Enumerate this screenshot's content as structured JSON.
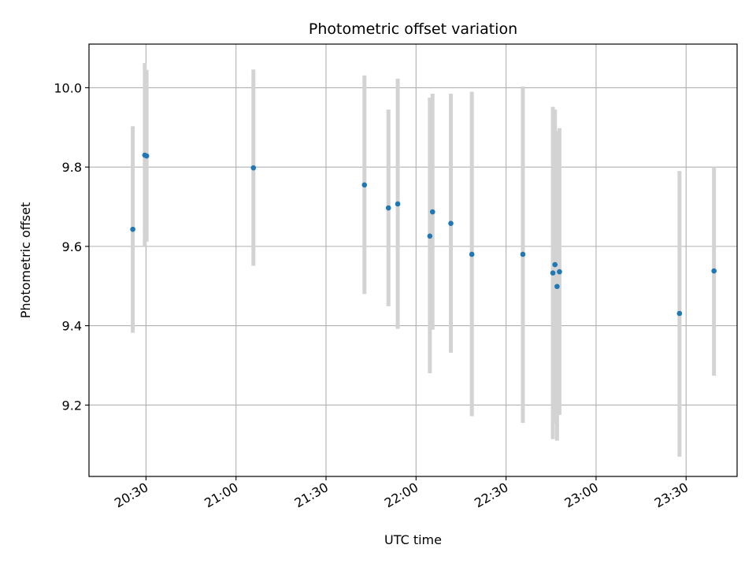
{
  "chart_data": {
    "type": "scatter",
    "title": "Photometric offset variation",
    "xlabel": "UTC time",
    "ylabel": "Photometric offset",
    "x_axis_type": "time",
    "xlim": [
      "20:11",
      "23:47"
    ],
    "ylim": [
      9.02,
      10.11
    ],
    "grid": true,
    "x_ticks": [
      "20:30",
      "21:00",
      "21:30",
      "22:00",
      "22:30",
      "23:00",
      "23:30"
    ],
    "y_ticks": [
      9.2,
      9.4,
      9.6,
      9.8,
      10.0
    ],
    "y_tick_labels": [
      "9.2",
      "9.4",
      "9.6",
      "9.8",
      "10.0"
    ],
    "point_color": "#1f77b4",
    "errorbar_color": "#d3d3d3",
    "points": [
      {
        "x": "20:25.6",
        "y": 9.643,
        "ylow": 9.382,
        "yhigh": 9.903
      },
      {
        "x": "20:29.6",
        "y": 9.83,
        "ylow": 9.6,
        "yhigh": 10.062
      },
      {
        "x": "20:30.2",
        "y": 9.828,
        "ylow": 9.612,
        "yhigh": 10.045
      },
      {
        "x": "21:05.8",
        "y": 9.798,
        "ylow": 9.551,
        "yhigh": 10.046
      },
      {
        "x": "21:42.8",
        "y": 9.755,
        "ylow": 9.48,
        "yhigh": 10.031
      },
      {
        "x": "21:50.8",
        "y": 9.697,
        "ylow": 9.449,
        "yhigh": 9.945
      },
      {
        "x": "21:53.9",
        "y": 9.707,
        "ylow": 9.392,
        "yhigh": 10.023
      },
      {
        "x": "22:04.6",
        "y": 9.626,
        "ylow": 9.28,
        "yhigh": 9.975
      },
      {
        "x": "22:05.5",
        "y": 9.687,
        "ylow": 9.39,
        "yhigh": 9.985
      },
      {
        "x": "22:11.6",
        "y": 9.658,
        "ylow": 9.332,
        "yhigh": 9.985
      },
      {
        "x": "22:18.6",
        "y": 9.58,
        "ylow": 9.172,
        "yhigh": 9.99
      },
      {
        "x": "22:35.6",
        "y": 9.58,
        "ylow": 9.155,
        "yhigh": 10.003
      },
      {
        "x": "22:45.6",
        "y": 9.533,
        "ylow": 9.114,
        "yhigh": 9.952
      },
      {
        "x": "22:46.3",
        "y": 9.554,
        "ylow": 9.155,
        "yhigh": 9.945
      },
      {
        "x": "22:47.0",
        "y": 9.499,
        "ylow": 9.11,
        "yhigh": 9.89
      },
      {
        "x": "22:47.8",
        "y": 9.536,
        "ylow": 9.175,
        "yhigh": 9.898
      },
      {
        "x": "23:27.8",
        "y": 9.431,
        "ylow": 9.07,
        "yhigh": 9.79
      },
      {
        "x": "23:39.3",
        "y": 9.538,
        "ylow": 9.274,
        "yhigh": 9.8
      }
    ]
  }
}
